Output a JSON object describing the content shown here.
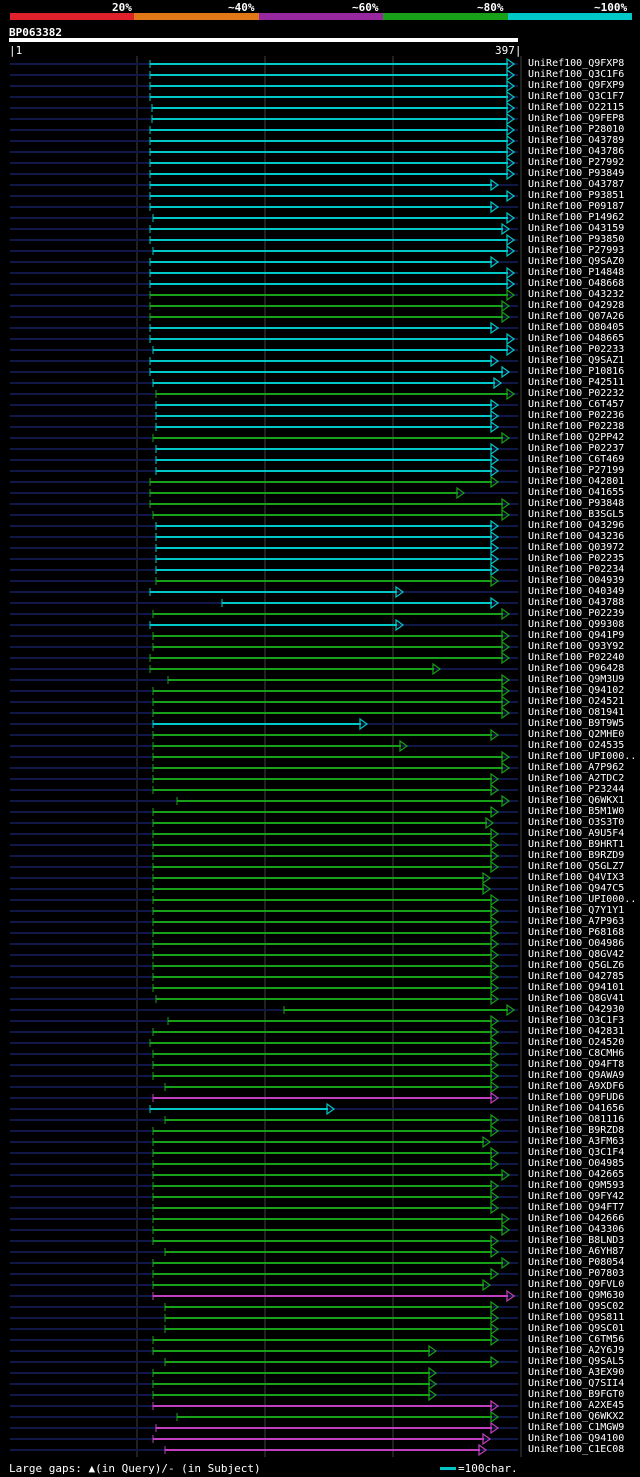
{
  "scale": {
    "labels": [
      "20%",
      "~40%",
      "~60%",
      "~80%",
      "~100%"
    ],
    "colors": [
      "#e0202a",
      "#e07818",
      "#9828a0",
      "#18a018",
      "#00c8c8"
    ]
  },
  "query": {
    "id": "BP063382",
    "start": "1",
    "end": "397"
  },
  "colors": {
    "cyan": "#00c8c8",
    "green": "#18a018",
    "magenta": "#c040c0",
    "navy": "#101848",
    "grid": "#404040"
  },
  "rows": [
    {
      "label": "UniRef100_Q9FXP8",
      "c": "cyan",
      "s": 150,
      "e": 514
    },
    {
      "label": "UniRef100_Q3C1F6",
      "c": "cyan",
      "s": 150,
      "e": 514
    },
    {
      "label": "UniRef100_Q9FXP9",
      "c": "cyan",
      "s": 150,
      "e": 514
    },
    {
      "label": "UniRef100_Q3C1F7",
      "c": "cyan",
      "s": 150,
      "e": 514
    },
    {
      "label": "UniRef100_O22115",
      "c": "cyan",
      "s": 152,
      "e": 514
    },
    {
      "label": "UniRef100_Q9FEP8",
      "c": "cyan",
      "s": 152,
      "e": 514
    },
    {
      "label": "UniRef100_P28010",
      "c": "cyan",
      "s": 150,
      "e": 514
    },
    {
      "label": "UniRef100_O43789",
      "c": "cyan",
      "s": 150,
      "e": 514
    },
    {
      "label": "UniRef100_O43786",
      "c": "cyan",
      "s": 150,
      "e": 514
    },
    {
      "label": "UniRef100_P27992",
      "c": "cyan",
      "s": 150,
      "e": 514
    },
    {
      "label": "UniRef100_P93849",
      "c": "cyan",
      "s": 150,
      "e": 514
    },
    {
      "label": "UniRef100_O43787",
      "c": "cyan",
      "s": 150,
      "e": 498
    },
    {
      "label": "UniRef100_P93851",
      "c": "cyan",
      "s": 150,
      "e": 514
    },
    {
      "label": "UniRef100_P09187",
      "c": "cyan",
      "s": 150,
      "e": 498
    },
    {
      "label": "UniRef100_P14962",
      "c": "cyan",
      "s": 153,
      "e": 514
    },
    {
      "label": "UniRef100_O43159",
      "c": "cyan",
      "s": 150,
      "e": 509
    },
    {
      "label": "UniRef100_P93850",
      "c": "cyan",
      "s": 150,
      "e": 514
    },
    {
      "label": "UniRef100_P27993",
      "c": "cyan",
      "s": 153,
      "e": 514
    },
    {
      "label": "UniRef100_Q9SAZ0",
      "c": "cyan",
      "s": 150,
      "e": 498
    },
    {
      "label": "UniRef100_P14848",
      "c": "cyan",
      "s": 150,
      "e": 514
    },
    {
      "label": "UniRef100_O48668",
      "c": "cyan",
      "s": 150,
      "e": 514
    },
    {
      "label": "UniRef100_O43232",
      "c": "green",
      "s": 150,
      "e": 514
    },
    {
      "label": "UniRef100_O42928",
      "c": "green",
      "s": 150,
      "e": 509
    },
    {
      "label": "UniRef100_Q07A26",
      "c": "green",
      "s": 150,
      "e": 509
    },
    {
      "label": "UniRef100_O80405",
      "c": "cyan",
      "s": 150,
      "e": 498
    },
    {
      "label": "UniRef100_O48665",
      "c": "cyan",
      "s": 150,
      "e": 514
    },
    {
      "label": "UniRef100_P02233",
      "c": "cyan",
      "s": 153,
      "e": 514
    },
    {
      "label": "UniRef100_Q9SAZ1",
      "c": "cyan",
      "s": 150,
      "e": 498
    },
    {
      "label": "UniRef100_P10816",
      "c": "cyan",
      "s": 150,
      "e": 509
    },
    {
      "label": "UniRef100_P42511",
      "c": "cyan",
      "s": 153,
      "e": 501
    },
    {
      "label": "UniRef100_P02232",
      "c": "green",
      "s": 156,
      "e": 514
    },
    {
      "label": "UniRef100_C6T457",
      "c": "cyan",
      "s": 156,
      "e": 498
    },
    {
      "label": "UniRef100_P02236",
      "c": "cyan",
      "s": 156,
      "e": 498
    },
    {
      "label": "UniRef100_P02238",
      "c": "cyan",
      "s": 156,
      "e": 498
    },
    {
      "label": "UniRef100_Q2PP42",
      "c": "green",
      "s": 153,
      "e": 509
    },
    {
      "label": "UniRef100_P02237",
      "c": "cyan",
      "s": 156,
      "e": 498
    },
    {
      "label": "UniRef100_C6T469",
      "c": "cyan",
      "s": 156,
      "e": 498
    },
    {
      "label": "UniRef100_P27199",
      "c": "cyan",
      "s": 156,
      "e": 498
    },
    {
      "label": "UniRef100_O42801",
      "c": "green",
      "s": 150,
      "e": 498
    },
    {
      "label": "UniRef100_O41655",
      "c": "green",
      "s": 150,
      "e": 464
    },
    {
      "label": "UniRef100_P93848",
      "c": "green",
      "s": 150,
      "e": 509
    },
    {
      "label": "UniRef100_B3SGL5",
      "c": "green",
      "s": 153,
      "e": 509
    },
    {
      "label": "UniRef100_O43296",
      "c": "cyan",
      "s": 156,
      "e": 498
    },
    {
      "label": "UniRef100_O43236",
      "c": "cyan",
      "s": 156,
      "e": 498
    },
    {
      "label": "UniRef100_Q03972",
      "c": "cyan",
      "s": 156,
      "e": 498
    },
    {
      "label": "UniRef100_P02235",
      "c": "cyan",
      "s": 156,
      "e": 498
    },
    {
      "label": "UniRef100_P02234",
      "c": "cyan",
      "s": 156,
      "e": 498
    },
    {
      "label": "UniRef100_O04939",
      "c": "green",
      "s": 156,
      "e": 498
    },
    {
      "label": "UniRef100_O40349",
      "c": "cyan",
      "s": 150,
      "e": 403
    },
    {
      "label": "UniRef100_O43788",
      "c": "cyan",
      "s": 222,
      "e": 498
    },
    {
      "label": "UniRef100_P02239",
      "c": "green",
      "s": 153,
      "e": 509
    },
    {
      "label": "UniRef100_Q99308",
      "c": "cyan",
      "s": 150,
      "e": 403
    },
    {
      "label": "UniRef100_Q941P9",
      "c": "green",
      "s": 153,
      "e": 509
    },
    {
      "label": "UniRef100_Q93Y92",
      "c": "green",
      "s": 153,
      "e": 509
    },
    {
      "label": "UniRef100_P02240",
      "c": "green",
      "s": 150,
      "e": 509
    },
    {
      "label": "UniRef100_Q96428",
      "c": "green",
      "s": 150,
      "e": 440
    },
    {
      "label": "UniRef100_Q9M3U9",
      "c": "green",
      "s": 168,
      "e": 509
    },
    {
      "label": "UniRef100_Q94102",
      "c": "green",
      "s": 153,
      "e": 509
    },
    {
      "label": "UniRef100_O24521",
      "c": "green",
      "s": 153,
      "e": 509
    },
    {
      "label": "UniRef100_O81941",
      "c": "green",
      "s": 153,
      "e": 509
    },
    {
      "label": "UniRef100_B9T9W5",
      "c": "cyan",
      "s": 153,
      "e": 367
    },
    {
      "label": "UniRef100_Q2MHE0",
      "c": "green",
      "s": 153,
      "e": 498
    },
    {
      "label": "UniRef100_O24535",
      "c": "green",
      "s": 153,
      "e": 407
    },
    {
      "label": "UniRef100_UPI000..",
      "c": "green",
      "s": 153,
      "e": 509
    },
    {
      "label": "UniRef100_A7P962",
      "c": "green",
      "s": 153,
      "e": 509
    },
    {
      "label": "UniRef100_A2TDC2",
      "c": "green",
      "s": 153,
      "e": 498
    },
    {
      "label": "UniRef100_P23244",
      "c": "green",
      "s": 153,
      "e": 498
    },
    {
      "label": "UniRef100_Q6WKX1",
      "c": "green",
      "s": 177,
      "e": 509
    },
    {
      "label": "UniRef100_B5M1W0",
      "c": "green",
      "s": 153,
      "e": 498
    },
    {
      "label": "UniRef100_O3S3T0",
      "c": "green",
      "s": 153,
      "e": 493
    },
    {
      "label": "UniRef100_A9U5F4",
      "c": "green",
      "s": 153,
      "e": 498
    },
    {
      "label": "UniRef100_B9HRT1",
      "c": "green",
      "s": 153,
      "e": 498
    },
    {
      "label": "UniRef100_B9RZD9",
      "c": "green",
      "s": 153,
      "e": 498
    },
    {
      "label": "UniRef100_Q5GLZ7",
      "c": "green",
      "s": 153,
      "e": 498
    },
    {
      "label": "UniRef100_Q4VIX3",
      "c": "green",
      "s": 153,
      "e": 490
    },
    {
      "label": "UniRef100_Q947C5",
      "c": "green",
      "s": 153,
      "e": 490
    },
    {
      "label": "UniRef100_UPI000..",
      "c": "green",
      "s": 153,
      "e": 498
    },
    {
      "label": "UniRef100_Q7Y1Y1",
      "c": "green",
      "s": 153,
      "e": 498
    },
    {
      "label": "UniRef100_A7P963",
      "c": "green",
      "s": 153,
      "e": 498
    },
    {
      "label": "UniRef100_P68168",
      "c": "green",
      "s": 153,
      "e": 498
    },
    {
      "label": "UniRef100_O04986",
      "c": "green",
      "s": 153,
      "e": 498
    },
    {
      "label": "UniRef100_Q8GV42",
      "c": "green",
      "s": 153,
      "e": 498
    },
    {
      "label": "UniRef100_Q5GLZ6",
      "c": "green",
      "s": 153,
      "e": 498
    },
    {
      "label": "UniRef100_O42785",
      "c": "green",
      "s": 153,
      "e": 498
    },
    {
      "label": "UniRef100_Q94101",
      "c": "green",
      "s": 153,
      "e": 498
    },
    {
      "label": "UniRef100_Q8GV41",
      "c": "green",
      "s": 156,
      "e": 498
    },
    {
      "label": "UniRef100_O42930",
      "c": "green",
      "s": 284,
      "e": 514
    },
    {
      "label": "UniRef100_O3C1F3",
      "c": "green",
      "s": 168,
      "e": 498
    },
    {
      "label": "UniRef100_O42831",
      "c": "green",
      "s": 153,
      "e": 498
    },
    {
      "label": "UniRef100_O24520",
      "c": "green",
      "s": 150,
      "e": 498
    },
    {
      "label": "UniRef100_C8CMH6",
      "c": "green",
      "s": 153,
      "e": 498
    },
    {
      "label": "UniRef100_Q94FT8",
      "c": "green",
      "s": 153,
      "e": 498
    },
    {
      "label": "UniRef100_Q9AWA9",
      "c": "green",
      "s": 153,
      "e": 498
    },
    {
      "label": "UniRef100_A9XDF6",
      "c": "green",
      "s": 165,
      "e": 498
    },
    {
      "label": "UniRef100_Q9FUD6",
      "c": "magenta",
      "s": 153,
      "e": 498
    },
    {
      "label": "UniRef100_O41656",
      "c": "cyan",
      "s": 150,
      "e": 334
    },
    {
      "label": "UniRef100_O81116",
      "c": "green",
      "s": 165,
      "e": 498
    },
    {
      "label": "UniRef100_B9RZD8",
      "c": "green",
      "s": 153,
      "e": 498
    },
    {
      "label": "UniRef100_A3FM63",
      "c": "green",
      "s": 153,
      "e": 490
    },
    {
      "label": "UniRef100_Q3C1F4",
      "c": "green",
      "s": 153,
      "e": 498
    },
    {
      "label": "UniRef100_O04985",
      "c": "green",
      "s": 153,
      "e": 498
    },
    {
      "label": "UniRef100_O42665",
      "c": "green",
      "s": 153,
      "e": 509
    },
    {
      "label": "UniRef100_Q9M593",
      "c": "green",
      "s": 153,
      "e": 498
    },
    {
      "label": "UniRef100_Q9FY42",
      "c": "green",
      "s": 153,
      "e": 498
    },
    {
      "label": "UniRef100_Q94FT7",
      "c": "green",
      "s": 153,
      "e": 498
    },
    {
      "label": "UniRef100_O42666",
      "c": "green",
      "s": 153,
      "e": 509
    },
    {
      "label": "UniRef100_O43306",
      "c": "green",
      "s": 153,
      "e": 509
    },
    {
      "label": "UniRef100_B8LND3",
      "c": "green",
      "s": 153,
      "e": 498
    },
    {
      "label": "UniRef100_A6YH87",
      "c": "green",
      "s": 165,
      "e": 498
    },
    {
      "label": "UniRef100_P08054",
      "c": "green",
      "s": 153,
      "e": 509
    },
    {
      "label": "UniRef100_P07803",
      "c": "green",
      "s": 153,
      "e": 498
    },
    {
      "label": "UniRef100_Q9FVL0",
      "c": "green",
      "s": 153,
      "e": 490
    },
    {
      "label": "UniRef100_Q9M630",
      "c": "magenta",
      "s": 153,
      "e": 514
    },
    {
      "label": "UniRef100_Q9SC02",
      "c": "green",
      "s": 165,
      "e": 498
    },
    {
      "label": "UniRef100_Q9S811",
      "c": "green",
      "s": 165,
      "e": 498
    },
    {
      "label": "UniRef100_Q9SC01",
      "c": "green",
      "s": 165,
      "e": 498
    },
    {
      "label": "UniRef100_C6TM56",
      "c": "green",
      "s": 153,
      "e": 498
    },
    {
      "label": "UniRef100_A2Y6J9",
      "c": "green",
      "s": 153,
      "e": 436
    },
    {
      "label": "UniRef100_Q9SAL5",
      "c": "green",
      "s": 165,
      "e": 498
    },
    {
      "label": "UniRef100_A3EX90",
      "c": "green",
      "s": 153,
      "e": 436
    },
    {
      "label": "UniRef100_Q7SII4",
      "c": "green",
      "s": 153,
      "e": 436
    },
    {
      "label": "UniRef100_B9FGT0",
      "c": "green",
      "s": 153,
      "e": 436
    },
    {
      "label": "UniRef100_A2XE45",
      "c": "magenta",
      "s": 153,
      "e": 498
    },
    {
      "label": "UniRef100_Q6WKX2",
      "c": "green",
      "s": 177,
      "e": 498
    },
    {
      "label": "UniRef100_C1MGW9",
      "c": "magenta",
      "s": 156,
      "e": 498
    },
    {
      "label": "UniRef100_Q94100",
      "c": "magenta",
      "s": 153,
      "e": 490
    },
    {
      "label": "UniRef100_C1EC08",
      "c": "magenta",
      "s": 165,
      "e": 486
    }
  ],
  "footer": {
    "left": "Large gaps: ▲(in Query)/- (in Subject)",
    "right": "=100char."
  }
}
